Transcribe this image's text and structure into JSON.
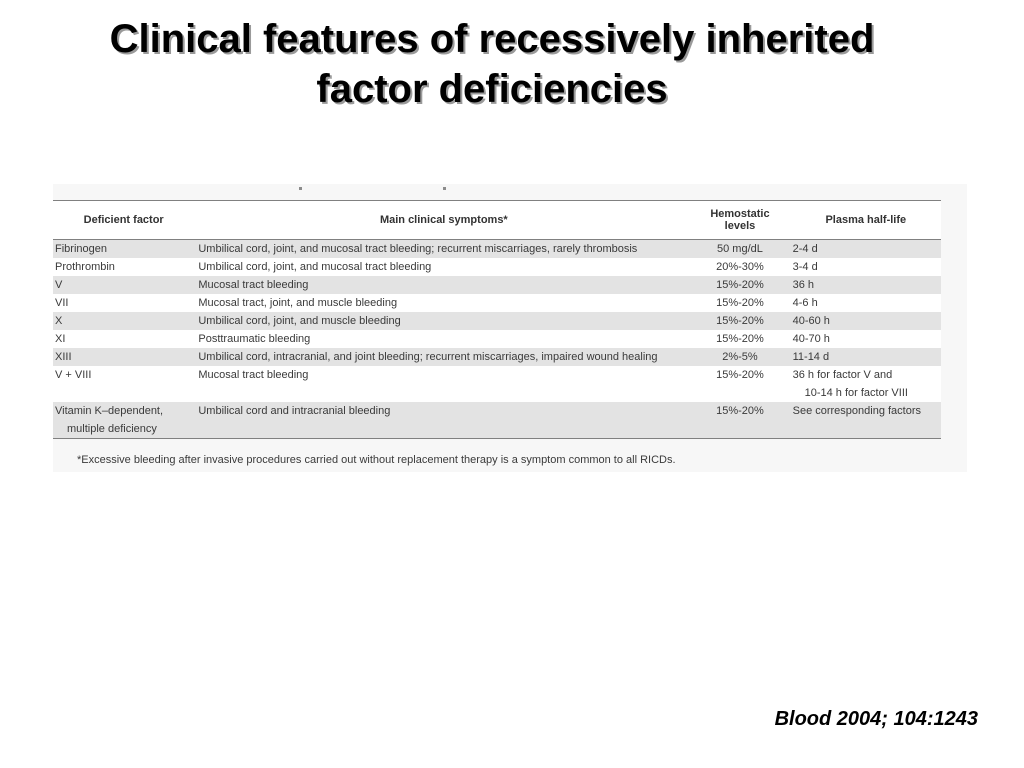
{
  "slide": {
    "title_line1": "Clinical features of recessively inherited",
    "title_line2": "factor deficiencies",
    "citation": "Blood 2004; 104:1243"
  },
  "table": {
    "headers": {
      "factor": "Deficient factor",
      "symptoms": "Main clinical symptoms*",
      "levels_line1": "Hemostatic",
      "levels_line2": "levels",
      "half_life": "Plasma half-life"
    },
    "rows": [
      {
        "factor": "Fibrinogen",
        "symptoms": "Umbilical cord, joint, and mucosal tract bleeding; recurrent miscarriages, rarely thrombosis",
        "levels": "50 mg/dL",
        "half_life": "2-4 d"
      },
      {
        "factor": "Prothrombin",
        "symptoms": "Umbilical cord, joint, and mucosal tract bleeding",
        "levels": "20%-30%",
        "half_life": "3-4 d"
      },
      {
        "factor": "V",
        "symptoms": "Mucosal tract bleeding",
        "levels": "15%-20%",
        "half_life": "36 h"
      },
      {
        "factor": "VII",
        "symptoms": "Mucosal tract, joint, and muscle bleeding",
        "levels": "15%-20%",
        "half_life": "4-6 h"
      },
      {
        "factor": "X",
        "symptoms": "Umbilical cord, joint, and muscle bleeding",
        "levels": "15%-20%",
        "half_life": "40-60 h"
      },
      {
        "factor": "XI",
        "symptoms": "Posttraumatic bleeding",
        "levels": "15%-20%",
        "half_life": "40-70 h"
      },
      {
        "factor": "XIII",
        "symptoms": "Umbilical cord, intracranial, and joint bleeding; recurrent miscarriages, impaired wound healing",
        "levels": "2%-5%",
        "half_life": "11-14 d"
      },
      {
        "factor": "V + VIII",
        "symptoms": "Mucosal tract bleeding",
        "levels": "15%-20%",
        "half_life_line1": "36 h for factor V and",
        "half_life_line2": "10-14 h for factor VIII"
      },
      {
        "factor_line1": "Vitamin K–dependent,",
        "factor_line2": "multiple deficiency",
        "symptoms": "Umbilical cord and intracranial bleeding",
        "levels": "15%-20%",
        "half_life": "See corresponding factors"
      }
    ],
    "footnote": "*Excessive bleeding after invasive procedures carried out without replacement therapy is a symptom common to all RICDs."
  }
}
